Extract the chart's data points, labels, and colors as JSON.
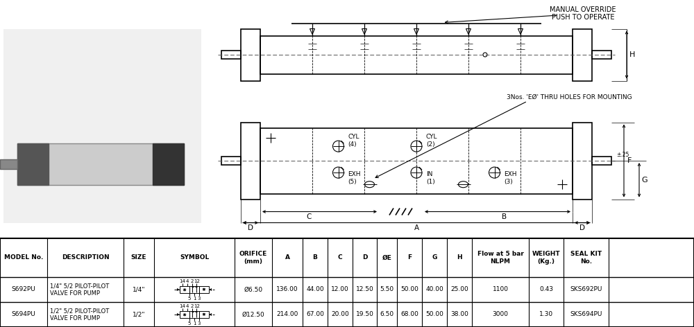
{
  "bg_color": "#ffffff",
  "line_color": "#000000",
  "rows": [
    {
      "model": "S692PU",
      "desc": "1/4\" 5/2 PILOT-PILOT\nVALVE FOR PUMP",
      "size": "1/4\"",
      "orifice": "Ø6.50",
      "A": "136.00",
      "B": "44.00",
      "C": "12.00",
      "D": "12.50",
      "E": "5.50",
      "F": "50.00",
      "G": "40.00",
      "H": "25.00",
      "flow": "1100",
      "weight": "0.43",
      "seal": "SKS692PU"
    },
    {
      "model": "S694PU",
      "desc": "1/2\" 5/2 PILOT-PILOT\nVALVE FOR PUMP",
      "size": "1/2\"",
      "orifice": "Ø12.50",
      "A": "214.00",
      "B": "67.00",
      "C": "20.00",
      "D": "19.50",
      "E": "6.50",
      "F": "68.00",
      "G": "50.00",
      "H": "38.00",
      "flow": "3000",
      "weight": "1.30",
      "seal": "SKS694PU"
    }
  ]
}
